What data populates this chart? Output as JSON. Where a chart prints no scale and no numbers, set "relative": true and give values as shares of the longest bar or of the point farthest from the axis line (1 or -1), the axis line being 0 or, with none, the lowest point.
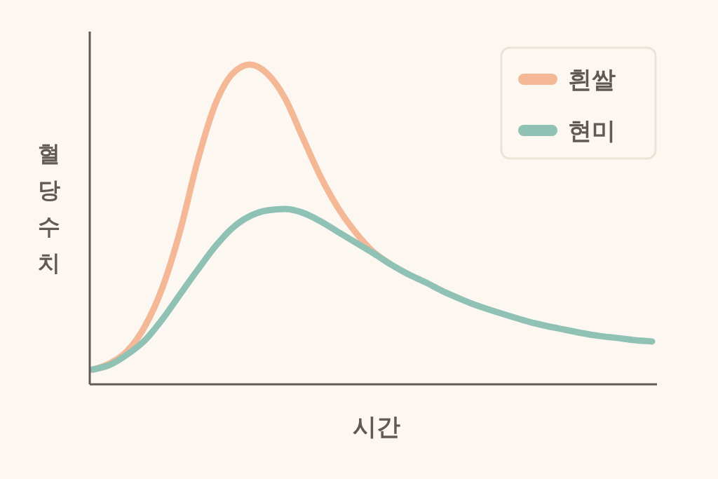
{
  "chart_data": {
    "type": "line",
    "relative": true,
    "xlabel": "시간",
    "ylabel": "혈당수치",
    "legend": "top right",
    "marker": "none",
    "line_style": "solid",
    "categories": [
      null,
      null,
      null,
      null,
      null,
      null,
      null,
      null,
      null,
      null,
      null,
      null,
      null,
      null,
      null,
      null,
      null,
      null,
      null,
      null,
      null,
      null,
      null,
      null,
      null,
      null,
      null,
      null,
      null,
      null,
      null,
      null,
      null
    ],
    "series": [
      {
        "name": "흰쌀",
        "color": "#f4b896",
        "values": [
          0.046,
          0.066,
          0.105,
          0.182,
          0.303,
          0.478,
          0.697,
          0.873,
          0.971,
          1,
          0.971,
          0.895,
          0.774,
          0.654,
          0.555,
          0.478,
          0.417,
          0.377,
          null,
          null,
          null,
          null,
          null,
          null,
          null,
          null,
          null,
          null,
          null,
          null,
          null,
          null,
          null
        ]
      },
      {
        "name": "현미",
        "color": "#8fc1b5",
        "values": [
          0.046,
          0.061,
          0.094,
          0.138,
          0.204,
          0.281,
          0.357,
          0.43,
          0.489,
          0.526,
          0.544,
          0.548,
          0.537,
          0.511,
          0.478,
          0.445,
          0.412,
          0.377,
          0.346,
          0.32,
          0.292,
          0.268,
          0.246,
          0.228,
          0.211,
          0.195,
          0.182,
          0.171,
          0.16,
          0.151,
          0.145,
          0.138,
          0.134
        ]
      }
    ]
  }
}
